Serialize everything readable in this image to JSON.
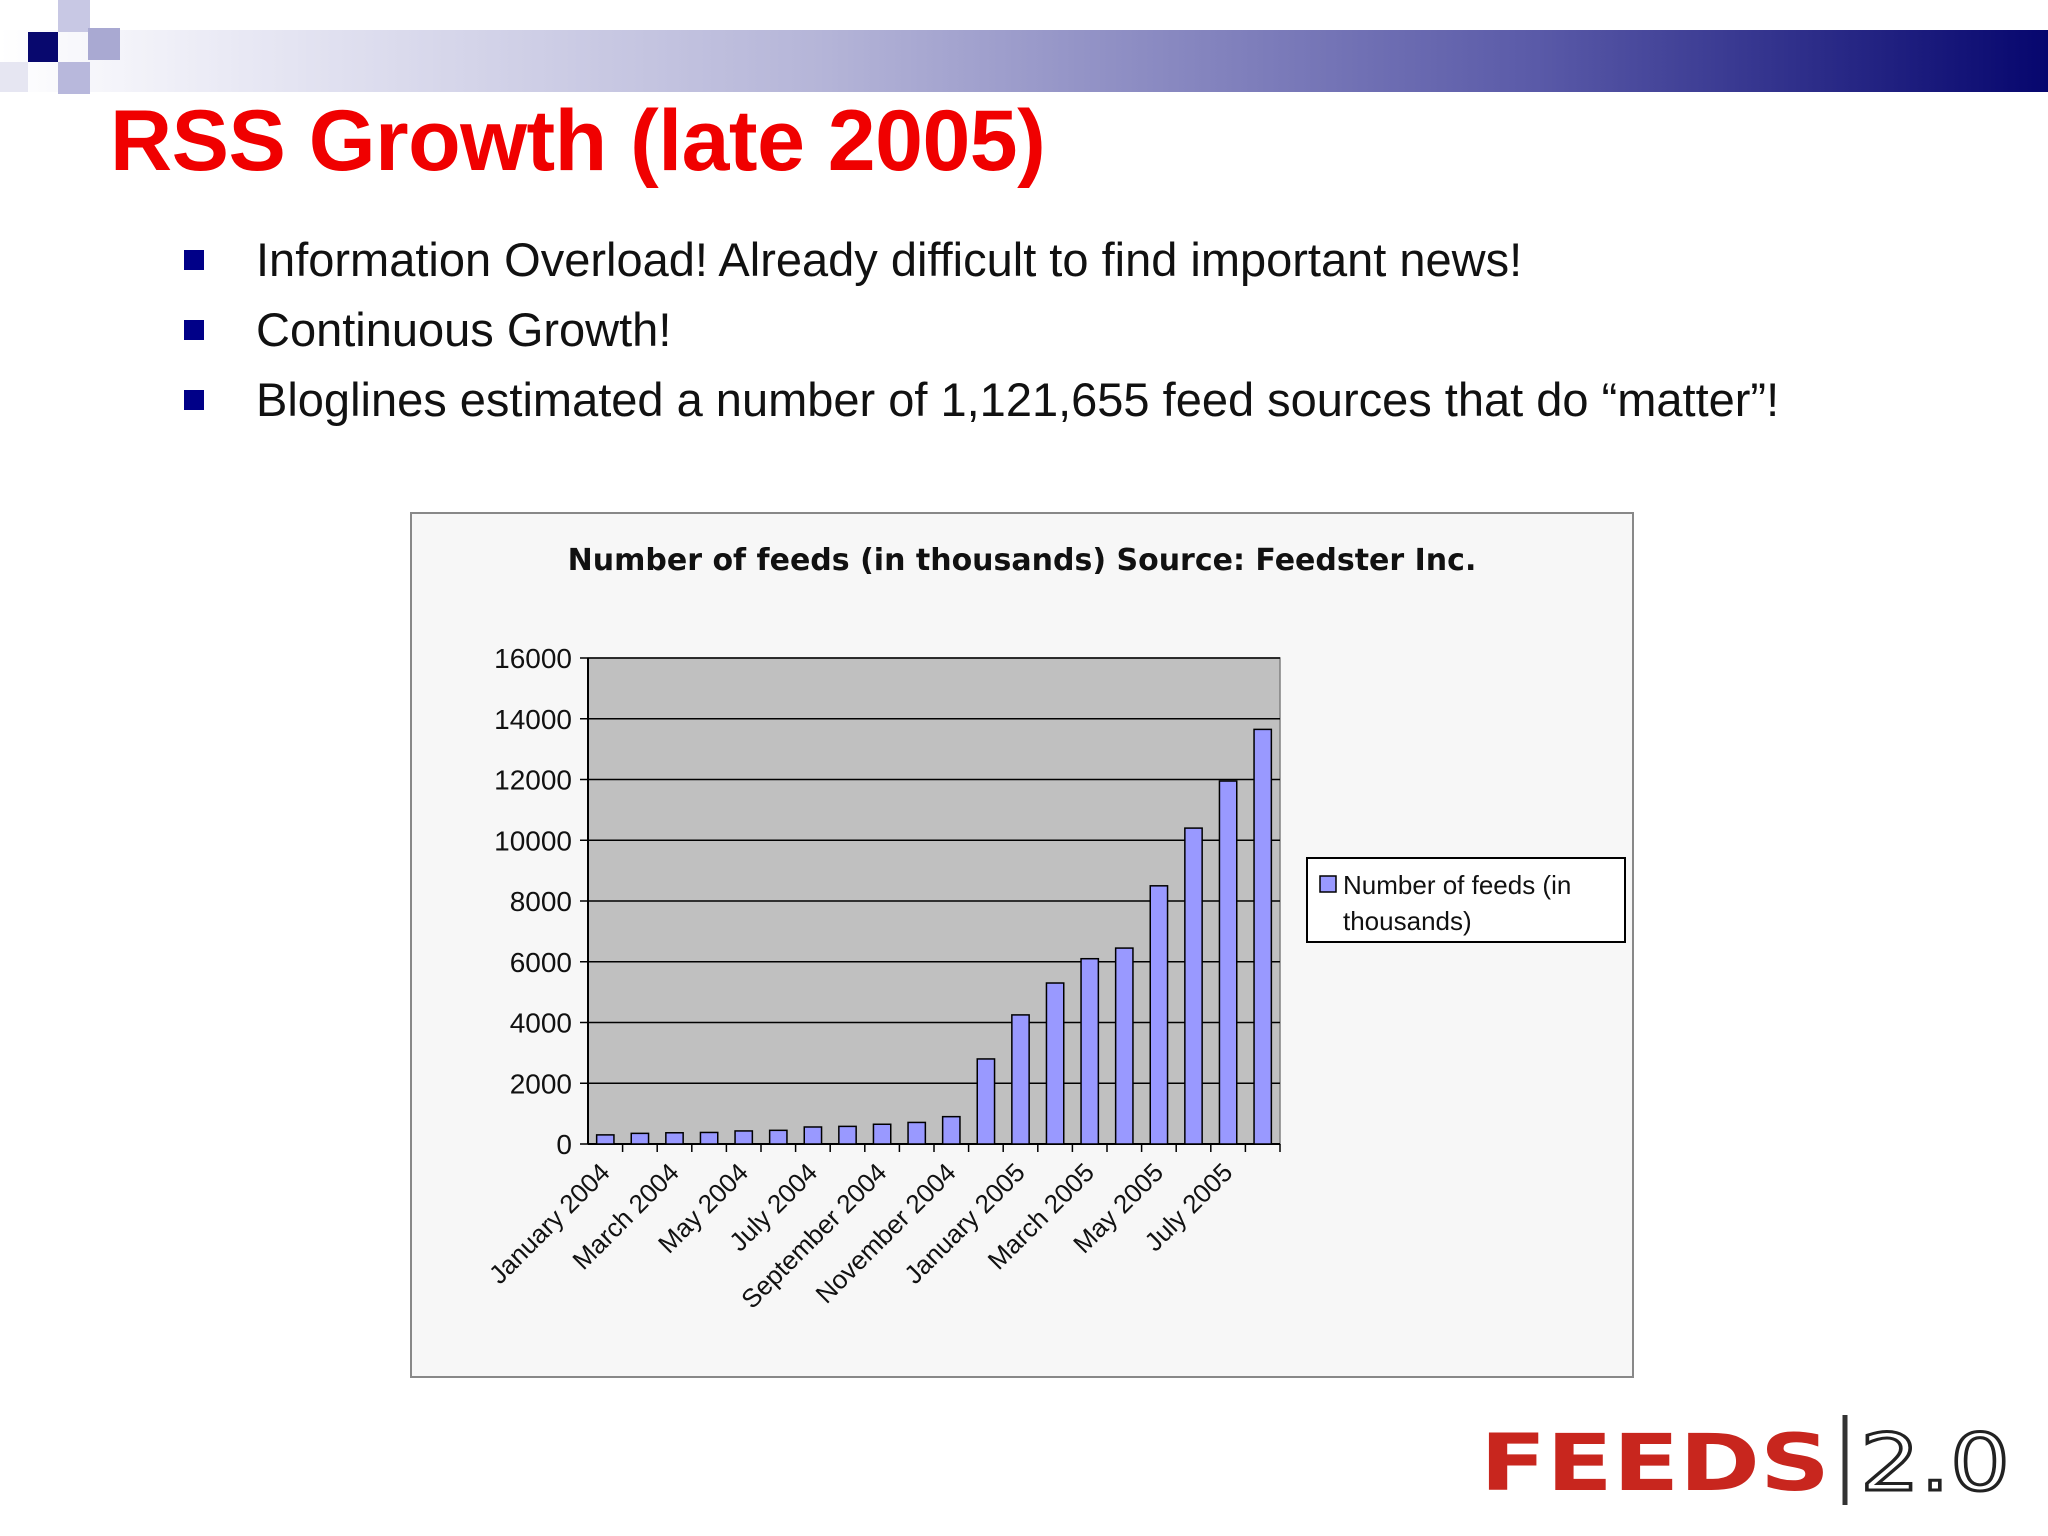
{
  "slide": {
    "title": "RSS Growth (late 2005)",
    "bullets": [
      "Information Overload! Already difficult to find important news!",
      "Continuous Growth!",
      "Bloglines estimated a number of 1,121,655 feed sources that do “matter”!"
    ],
    "colors": {
      "title": "#f00000",
      "bullet": "#000088",
      "bar": "#9999ff",
      "plot_bg": "#c0c0c0"
    }
  },
  "logo": {
    "text_left": "FEEDS",
    "text_right": "2.0"
  },
  "chart_data": {
    "type": "bar",
    "title": "Number of feeds (in thousands) Source: Feedster Inc.",
    "xlabel": "",
    "ylabel": "",
    "ylim": [
      0,
      16000
    ],
    "yticks": [
      0,
      2000,
      4000,
      6000,
      8000,
      10000,
      12000,
      14000,
      16000
    ],
    "grid": true,
    "legend": "right",
    "x_tick_labels": [
      "January 2004",
      "March 2004",
      "May 2004",
      "July 2004",
      "September 2004",
      "November 2004",
      "January 2005",
      "March 2005",
      "May 2005",
      "July 2005"
    ],
    "series": [
      {
        "name": "Number of feeds (in thousands)",
        "values": [
          300,
          350,
          370,
          380,
          430,
          450,
          560,
          580,
          650,
          710,
          900,
          2800,
          4250,
          5300,
          6100,
          6450,
          8500,
          10400,
          11950,
          13650
        ]
      }
    ]
  }
}
